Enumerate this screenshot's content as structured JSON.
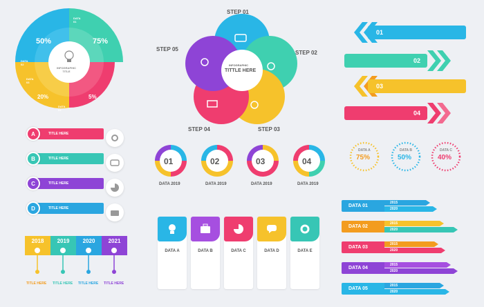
{
  "pie": {
    "title": "INFOGRAPHIC\nTITLE",
    "pct_top_left": "50%",
    "pct_top_right": "75%",
    "pct_bottom_left": "20%",
    "pct_bottom_right": "5%",
    "data_01": "DATA\n01",
    "data_02": "DATA\n02",
    "data_03": "DATA\n03",
    "data_04": "DATA\n04"
  },
  "steps": {
    "center_title_1": "INFOGRAPHIC",
    "center_title_2": "TITTLE HERE",
    "step01": "STEP 01",
    "step02": "STEP 02",
    "step03": "STEP 03",
    "step04": "STEP 04",
    "step05": "STEP 05"
  },
  "arrows_right": [
    {
      "num": "01",
      "color": "#29b6e6"
    },
    {
      "num": "02",
      "color": "#3fd0b0"
    },
    {
      "num": "03",
      "color": "#f6c22b"
    },
    {
      "num": "04",
      "color": "#ef3d6f"
    }
  ],
  "ribbons": [
    {
      "letter": "A",
      "title": "TITLE HERE",
      "color": "#ef3d6f"
    },
    {
      "letter": "B",
      "title": "TITLE HERE",
      "color": "#37c6b5"
    },
    {
      "letter": "C",
      "title": "TITLE HERE",
      "color": "#8e44d6"
    },
    {
      "letter": "D",
      "title": "TITLE HERE",
      "color": "#2aa6e0"
    }
  ],
  "rings": [
    {
      "num": "01",
      "label": "DATA 2019"
    },
    {
      "num": "02",
      "label": "DATA 2019"
    },
    {
      "num": "03",
      "label": "DATA 2019"
    },
    {
      "num": "04",
      "label": "DATA 2019"
    }
  ],
  "dials": [
    {
      "name": "DATA A",
      "value": "75%",
      "color": "#f6c22b"
    },
    {
      "name": "DATA B",
      "value": "50%",
      "color": "#29b6e6"
    },
    {
      "name": "DATA C",
      "value": "40%",
      "color": "#ef3d6f"
    }
  ],
  "timeline": {
    "years": [
      "2018",
      "2019",
      "2020",
      "2021"
    ],
    "titles": [
      "TITLE HERE",
      "TITLE HERE",
      "TITLE HERE",
      "TITLE HERE"
    ],
    "colors": [
      "#f6c22b",
      "#37c6b5",
      "#2aa6e0",
      "#8e44d6"
    ]
  },
  "cards": [
    {
      "label": "DATA A",
      "color": "#29b6e6",
      "icon": "bulb-icon"
    },
    {
      "label": "DATA B",
      "color": "#a64fe0",
      "icon": "briefcase-icon"
    },
    {
      "label": "DATA C",
      "color": "#ef3d6f",
      "icon": "pie-icon"
    },
    {
      "label": "DATA D",
      "color": "#f6c22b",
      "icon": "chat-icon"
    },
    {
      "label": "DATA E",
      "color": "#37c6b5",
      "icon": "gear-icon"
    }
  ],
  "bars": [
    {
      "label": "DATA 01",
      "color": "#2aa6e0",
      "years": [
        "2015",
        "2020"
      ],
      "bars": [
        "#2aa6e0",
        "#29b6e6"
      ]
    },
    {
      "label": "DATA 02",
      "color": "#f39c1f",
      "years": [
        "2015",
        "2020"
      ],
      "bars": [
        "#f6c22b",
        "#37c6b5"
      ]
    },
    {
      "label": "DATA 03",
      "color": "#ef3d6f",
      "years": [
        "2015",
        "2020"
      ],
      "bars": [
        "#f39c1f",
        "#ef3d6f"
      ]
    },
    {
      "label": "DATA 04",
      "color": "#8e44d6",
      "years": [
        "2015",
        "2020"
      ],
      "bars": [
        "#a64fe0",
        "#8e44d6"
      ]
    },
    {
      "label": "DATA 05",
      "color": "#29b6e6",
      "years": [
        "2015",
        "2020"
      ],
      "bars": [
        "#2aa6e0",
        "#29b6e6"
      ]
    }
  ]
}
